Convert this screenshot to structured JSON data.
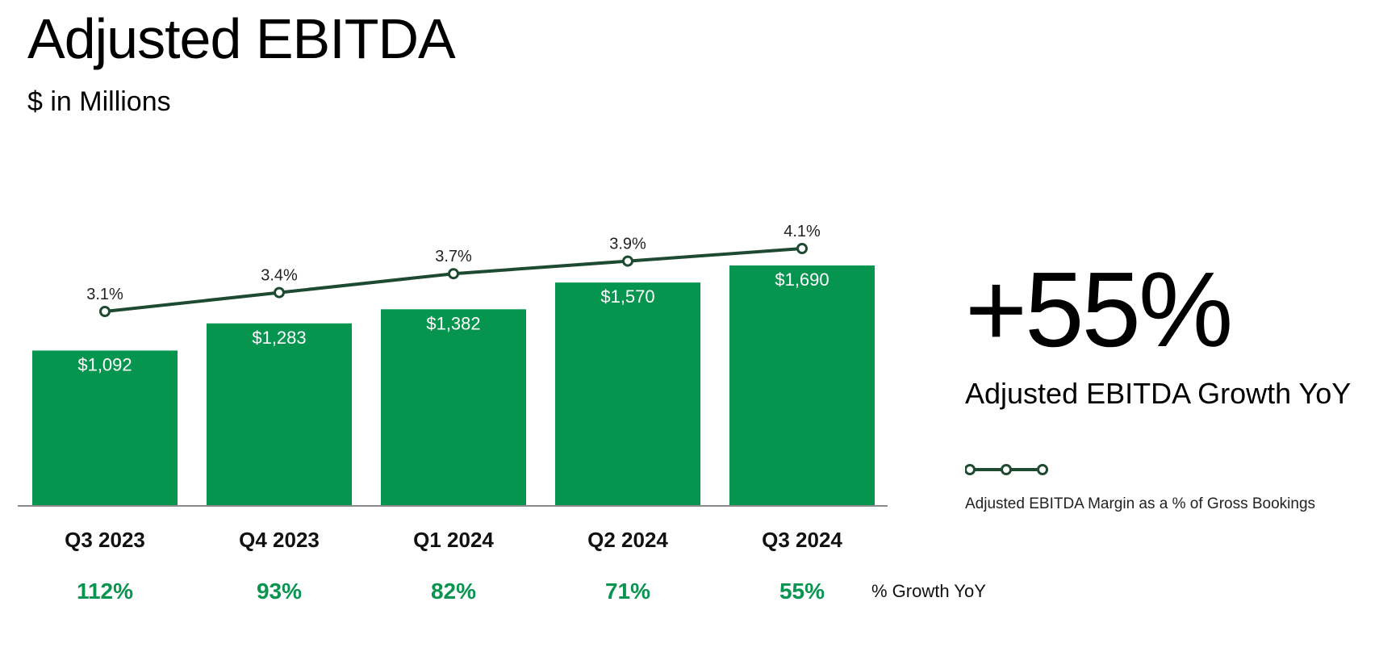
{
  "header": {
    "title": "Adjusted EBITDA",
    "subtitle": "$ in Millions"
  },
  "highlight": {
    "value": "+55%",
    "label": "Adjusted EBITDA Growth YoY"
  },
  "legend": {
    "margin_label": "Adjusted EBITDA Margin as a % of Gross Bookings"
  },
  "growth_row_label": "% Growth YoY",
  "colors": {
    "bar": "#06954F",
    "line": "#1E4A31",
    "growth_text": "#0A9450",
    "axis": "#8A8A8A"
  },
  "chart_data": {
    "type": "bar",
    "categories": [
      "Q3 2023",
      "Q4 2023",
      "Q1 2024",
      "Q2 2024",
      "Q3 2024"
    ],
    "series": [
      {
        "type": "bar",
        "values": [
          1092,
          1283,
          1382,
          1570,
          1690
        ],
        "labels": [
          "$1,092",
          "$1,283",
          "$1,382",
          "$1,570",
          "$1,690"
        ]
      },
      {
        "name": "Adjusted EBITDA Margin as a % of Gross Bookings",
        "type": "line",
        "values": [
          3.1,
          3.4,
          3.7,
          3.9,
          4.1
        ],
        "labels": [
          "3.1%",
          "3.4%",
          "3.7%",
          "3.9%",
          "4.1%"
        ]
      }
    ],
    "growth_yoy": [
      "112%",
      "93%",
      "82%",
      "71%",
      "55%"
    ],
    "title": "Adjusted EBITDA",
    "ylabel": "$ in Millions",
    "grid": false,
    "legend_position": "right"
  }
}
